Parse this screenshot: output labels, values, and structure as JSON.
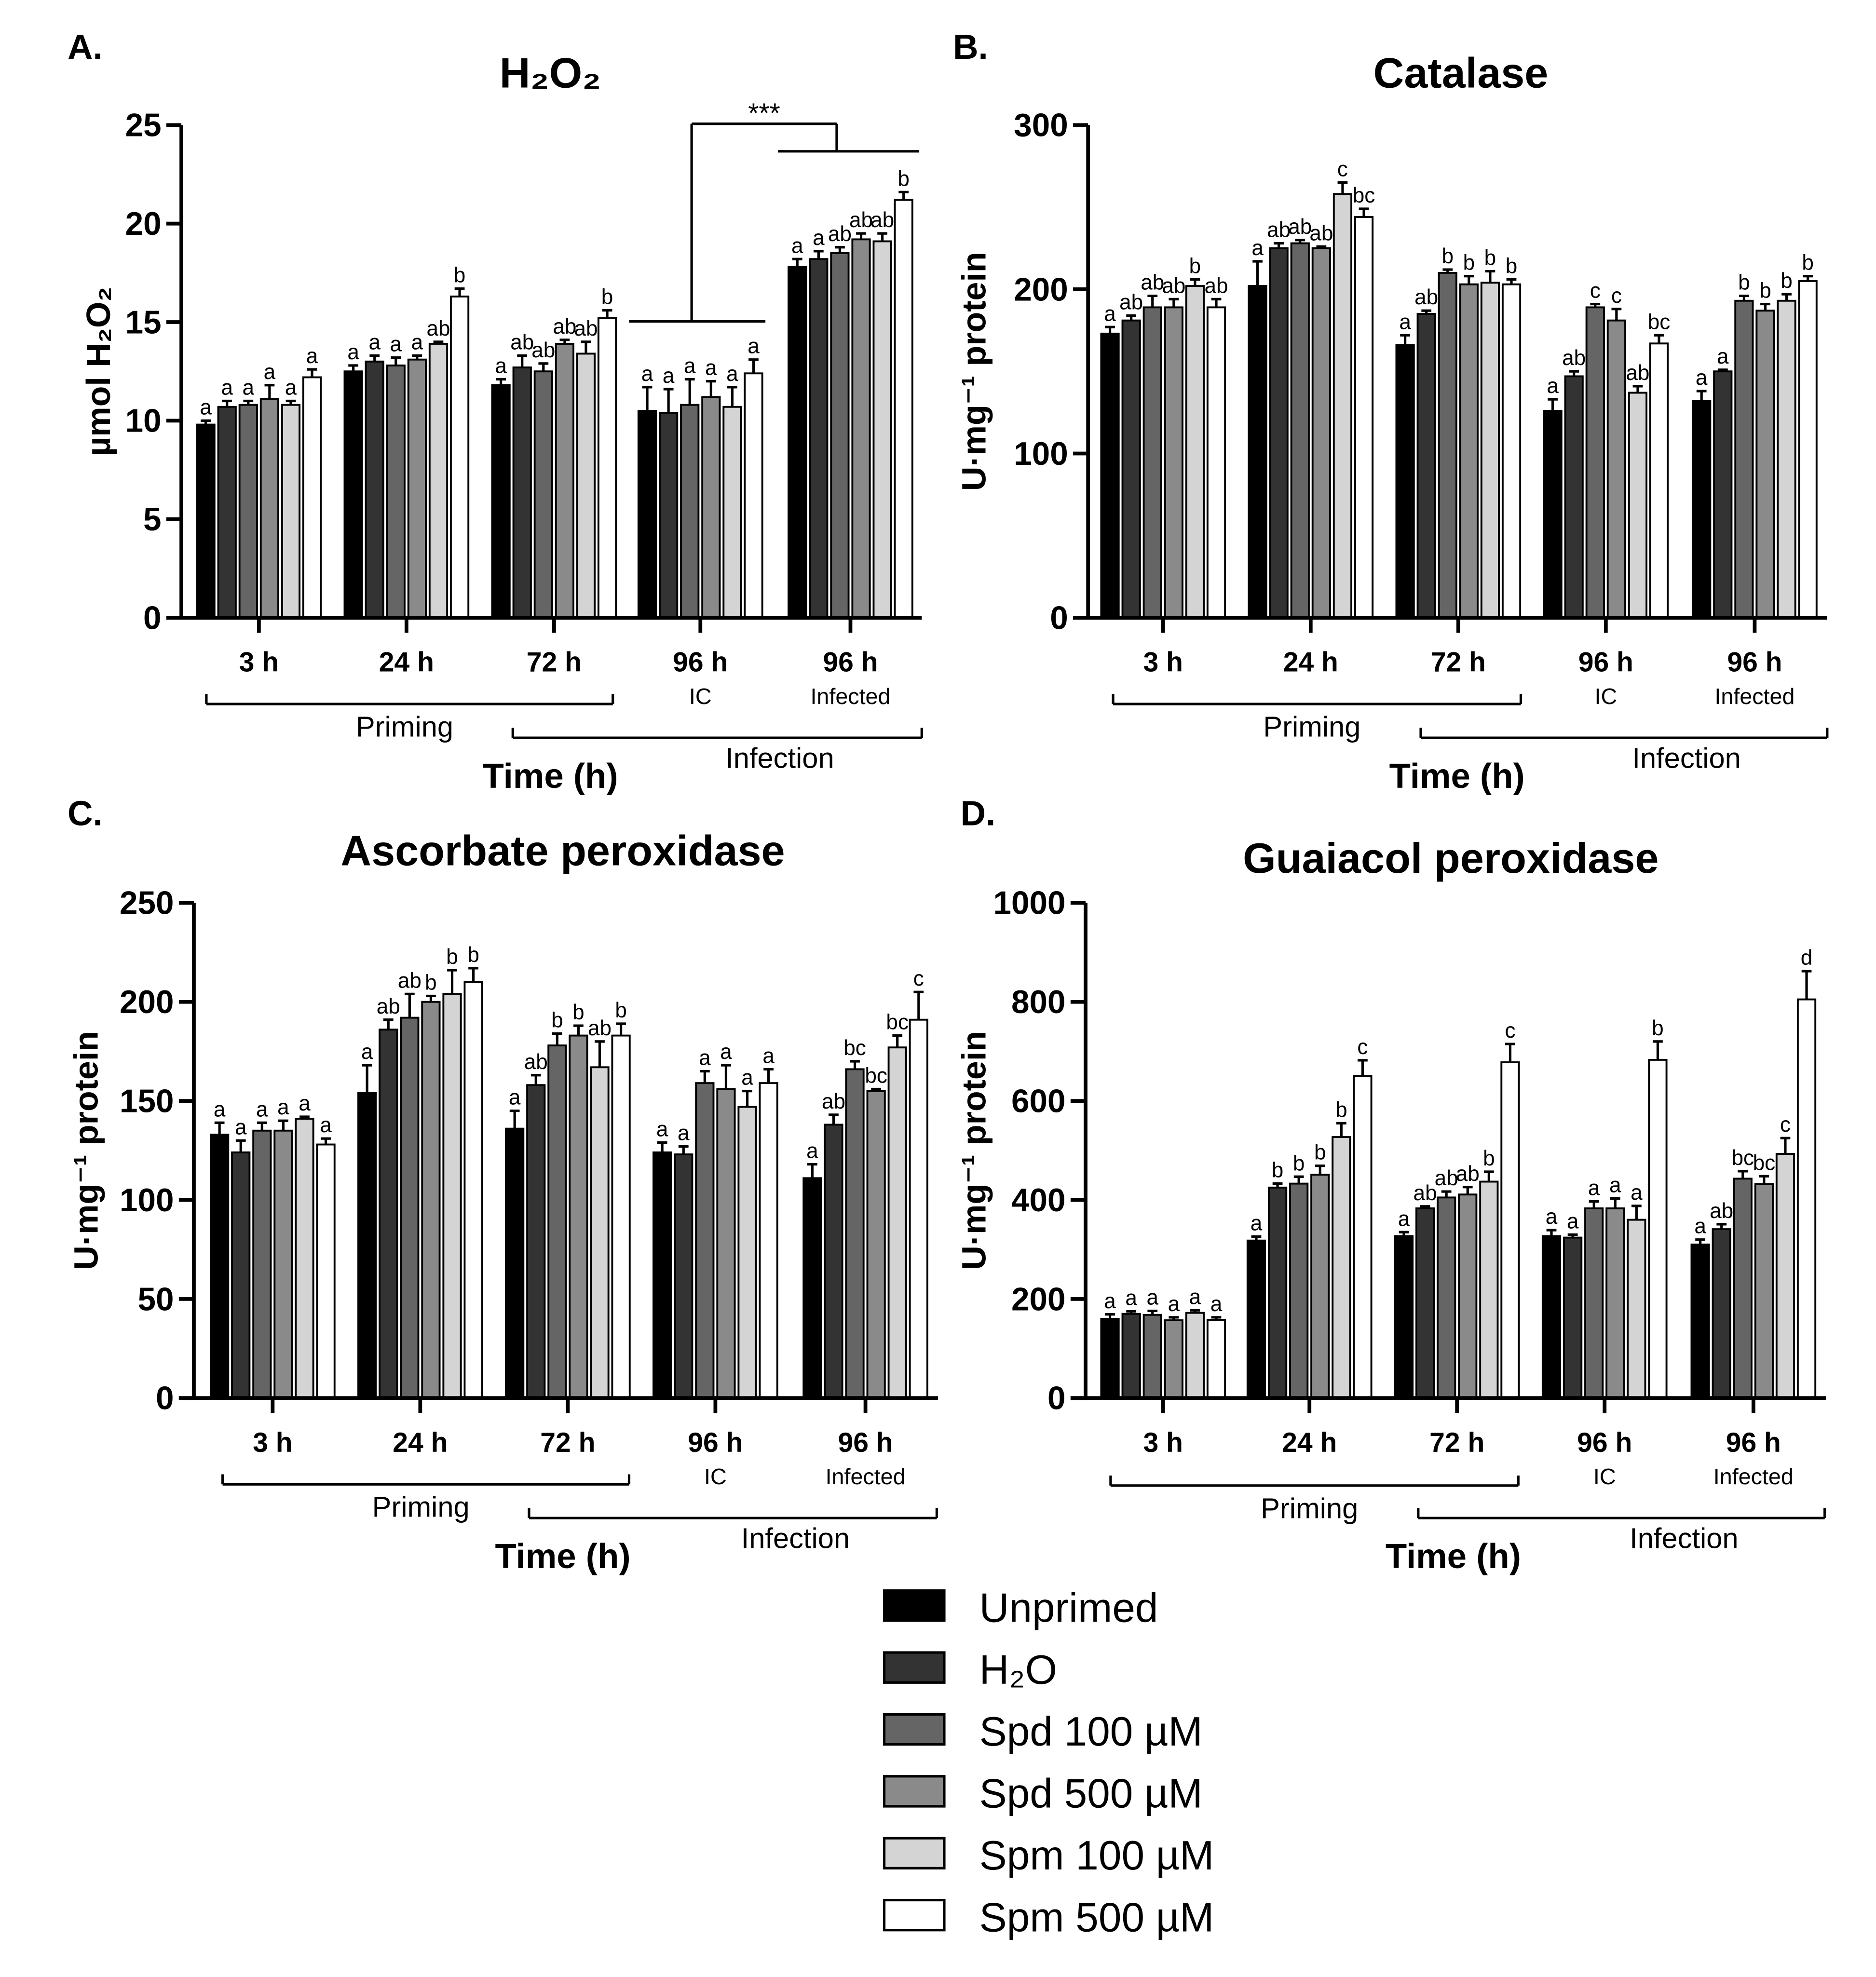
{
  "legend": [
    {
      "label": "Unprimed",
      "color": "#000000"
    },
    {
      "label": "H₂O",
      "color": "#333333"
    },
    {
      "label": "Spd 100 µM",
      "color": "#656565"
    },
    {
      "label": "Spd 500 µM",
      "color": "#8a8a8a"
    },
    {
      "label": "Spm 100 µM",
      "color": "#d4d4d4"
    },
    {
      "label": "Spm 500 µM",
      "color": "#ffffff"
    }
  ],
  "chart_data": [
    {
      "panel": "A.",
      "type": "bar",
      "title": "H₂O₂",
      "ylabel": "µmol H₂O₂",
      "xlabel": "Time (h)",
      "ylim": [
        0,
        25
      ],
      "yticks": [
        "0",
        "5",
        "10",
        "15",
        "20",
        "25"
      ],
      "categories": [
        {
          "label": "3 h",
          "sub": ""
        },
        {
          "label": "24 h",
          "sub": ""
        },
        {
          "label": "72 h",
          "sub": ""
        },
        {
          "label": "96 h",
          "sub": "IC"
        },
        {
          "label": "96 h",
          "sub": "Infected"
        }
      ],
      "brackets": {
        "priming": "Priming",
        "infection": "Infection"
      },
      "significance": "***",
      "series": [
        {
          "name": "Unprimed",
          "values": [
            9.8,
            12.5,
            11.8,
            10.5,
            17.8
          ],
          "errors": [
            0.2,
            0.3,
            0.3,
            1.2,
            0.4
          ],
          "letters": [
            "a",
            "a",
            "a",
            "a",
            "a"
          ]
        },
        {
          "name": "H₂O",
          "values": [
            10.7,
            13.0,
            12.7,
            10.4,
            18.2
          ],
          "errors": [
            0.3,
            0.3,
            0.6,
            1.2,
            0.4
          ],
          "letters": [
            "a",
            "a",
            "ab",
            "a",
            "a"
          ]
        },
        {
          "name": "Spd 100 µM",
          "values": [
            10.8,
            12.8,
            12.5,
            10.8,
            18.5
          ],
          "errors": [
            0.2,
            0.4,
            0.4,
            1.3,
            0.3
          ],
          "letters": [
            "a",
            "a",
            "ab",
            "a",
            "ab"
          ]
        },
        {
          "name": "Spd 500 µM",
          "values": [
            11.1,
            13.1,
            13.9,
            11.2,
            19.2
          ],
          "errors": [
            0.7,
            0.2,
            0.2,
            0.8,
            0.3
          ],
          "letters": [
            "a",
            "a",
            "ab",
            "a",
            "ab"
          ]
        },
        {
          "name": "Spm 100 µM",
          "values": [
            10.8,
            13.9,
            13.4,
            10.7,
            19.1
          ],
          "errors": [
            0.2,
            0.1,
            0.6,
            1.0,
            0.4
          ],
          "letters": [
            "a",
            "ab",
            "ab",
            "a",
            "ab"
          ]
        },
        {
          "name": "Spm 500 µM",
          "values": [
            12.2,
            16.3,
            15.2,
            12.4,
            21.2
          ],
          "errors": [
            0.4,
            0.4,
            0.4,
            0.7,
            0.4
          ],
          "letters": [
            "a",
            "b",
            "b",
            "a",
            "b"
          ]
        }
      ]
    },
    {
      "panel": "B.",
      "type": "bar",
      "title": "Catalase",
      "ylabel": "U·mg⁻¹ protein",
      "xlabel": "Time (h)",
      "ylim": [
        0,
        300
      ],
      "yticks": [
        "0",
        "100",
        "200",
        "300"
      ],
      "categories": [
        {
          "label": "3 h",
          "sub": ""
        },
        {
          "label": "24 h",
          "sub": ""
        },
        {
          "label": "72 h",
          "sub": ""
        },
        {
          "label": "96 h",
          "sub": "IC"
        },
        {
          "label": "96 h",
          "sub": "Infected"
        }
      ],
      "brackets": {
        "priming": "Priming",
        "infection": "Infection"
      },
      "series": [
        {
          "name": "Unprimed",
          "values": [
            173,
            202,
            166,
            126,
            132
          ],
          "errors": [
            4,
            15,
            6,
            7,
            6
          ],
          "letters": [
            "a",
            "a",
            "a",
            "a",
            "a"
          ]
        },
        {
          "name": "H₂O",
          "values": [
            181,
            225,
            185,
            147,
            150
          ],
          "errors": [
            3,
            3,
            2,
            3,
            1
          ],
          "letters": [
            "ab",
            "ab",
            "ab",
            "ab",
            "a"
          ]
        },
        {
          "name": "Spd 100 µM",
          "values": [
            189,
            228,
            210,
            189,
            193
          ],
          "errors": [
            7,
            2,
            2,
            2,
            3
          ],
          "letters": [
            "ab",
            "ab",
            "b",
            "c",
            "b"
          ]
        },
        {
          "name": "Spd 500 µM",
          "values": [
            189,
            225,
            203,
            181,
            187
          ],
          "errors": [
            5,
            1,
            5,
            7,
            4
          ],
          "letters": [
            "ab",
            "ab",
            "b",
            "c",
            "b"
          ]
        },
        {
          "name": "Spm 100 µM",
          "values": [
            202,
            258,
            204,
            137,
            193
          ],
          "errors": [
            4,
            7,
            7,
            4,
            4
          ],
          "letters": [
            "b",
            "c",
            "b",
            "ab",
            "b"
          ]
        },
        {
          "name": "Spm 500 µM",
          "values": [
            189,
            244,
            203,
            167,
            205
          ],
          "errors": [
            5,
            5,
            3,
            5,
            3
          ],
          "letters": [
            "ab",
            "bc",
            "b",
            "bc",
            "b"
          ]
        }
      ]
    },
    {
      "panel": "C.",
      "type": "bar",
      "title": "Ascorbate peroxidase",
      "ylabel": "U·mg⁻¹ protein",
      "xlabel": "Time (h)",
      "ylim": [
        0,
        250
      ],
      "yticks": [
        "0",
        "50",
        "100",
        "150",
        "200",
        "250"
      ],
      "categories": [
        {
          "label": "3 h",
          "sub": ""
        },
        {
          "label": "24 h",
          "sub": ""
        },
        {
          "label": "72 h",
          "sub": ""
        },
        {
          "label": "96 h",
          "sub": "IC"
        },
        {
          "label": "96 h",
          "sub": "Infected"
        }
      ],
      "brackets": {
        "priming": "Priming",
        "infection": "Infection"
      },
      "series": [
        {
          "name": "Unprimed",
          "values": [
            133,
            154,
            136,
            124,
            111
          ],
          "errors": [
            6,
            14,
            9,
            5,
            7
          ],
          "letters": [
            "a",
            "a",
            "a",
            "a",
            "a"
          ]
        },
        {
          "name": "H₂O",
          "values": [
            124,
            186,
            158,
            123,
            138
          ],
          "errors": [
            6,
            5,
            5,
            4,
            5
          ],
          "letters": [
            "a",
            "ab",
            "ab",
            "a",
            "ab"
          ]
        },
        {
          "name": "Spd 100 µM",
          "values": [
            135,
            192,
            178,
            159,
            166
          ],
          "errors": [
            4,
            12,
            6,
            6,
            4
          ],
          "letters": [
            "a",
            "ab",
            "b",
            "a",
            "bc"
          ]
        },
        {
          "name": "Spd 500 µM",
          "values": [
            135,
            200,
            183,
            156,
            155
          ],
          "errors": [
            5,
            3,
            5,
            12,
            1
          ],
          "letters": [
            "a",
            "b",
            "b",
            "a",
            "bc"
          ]
        },
        {
          "name": "Spm 100 µM",
          "values": [
            141,
            204,
            167,
            147,
            177
          ],
          "errors": [
            1,
            12,
            13,
            8,
            6
          ],
          "letters": [
            "a",
            "b",
            "ab",
            "a",
            "bc"
          ]
        },
        {
          "name": "Spm 500 µM",
          "values": [
            128,
            210,
            183,
            159,
            191
          ],
          "errors": [
            3,
            7,
            6,
            7,
            14
          ],
          "letters": [
            "a",
            "b",
            "b",
            "a",
            "c"
          ]
        }
      ]
    },
    {
      "panel": "D.",
      "type": "bar",
      "title": "Guaiacol peroxidase",
      "ylabel": "U·mg⁻¹ protein",
      "xlabel": "Time (h)",
      "ylim": [
        0,
        1000
      ],
      "yticks": [
        "0",
        "200",
        "400",
        "600",
        "800",
        "1000"
      ],
      "categories": [
        {
          "label": "3 h",
          "sub": ""
        },
        {
          "label": "24 h",
          "sub": ""
        },
        {
          "label": "72 h",
          "sub": ""
        },
        {
          "label": "96 h",
          "sub": "IC"
        },
        {
          "label": "96 h",
          "sub": "Infected"
        }
      ],
      "brackets": {
        "priming": "Priming",
        "infection": "Infection"
      },
      "series": [
        {
          "name": "Unprimed",
          "values": [
            160,
            318,
            327,
            327,
            310
          ],
          "errors": [
            9,
            8,
            8,
            12,
            10
          ],
          "letters": [
            "a",
            "a",
            "a",
            "a",
            "a"
          ]
        },
        {
          "name": "H₂O",
          "values": [
            170,
            425,
            383,
            324,
            341
          ],
          "errors": [
            5,
            8,
            4,
            6,
            10
          ],
          "letters": [
            "a",
            "b",
            "ab",
            "a",
            "ab"
          ]
        },
        {
          "name": "Spd 100 µM",
          "values": [
            168,
            433,
            405,
            383,
            443
          ],
          "errors": [
            8,
            14,
            12,
            14,
            15
          ],
          "letters": [
            "a",
            "b",
            "ab",
            "a",
            "bc"
          ]
        },
        {
          "name": "Spd 500 µM",
          "values": [
            157,
            451,
            411,
            383,
            432
          ],
          "errors": [
            6,
            18,
            15,
            20,
            16
          ],
          "letters": [
            "a",
            "b",
            "ab",
            "a",
            "bc"
          ]
        },
        {
          "name": "Spm 100 µM",
          "values": [
            172,
            527,
            437,
            360,
            493
          ],
          "errors": [
            5,
            28,
            20,
            28,
            32
          ],
          "letters": [
            "a",
            "b",
            "b",
            "a",
            "c"
          ]
        },
        {
          "name": "Spm 500 µM",
          "values": [
            158,
            650,
            678,
            683,
            805
          ],
          "errors": [
            5,
            32,
            37,
            37,
            57
          ],
          "letters": [
            "a",
            "c",
            "c",
            "b",
            "d"
          ]
        }
      ]
    }
  ]
}
